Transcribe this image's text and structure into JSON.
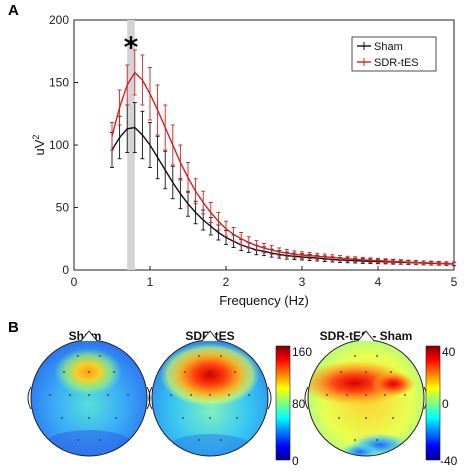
{
  "panel_labels": [
    "A",
    "B"
  ],
  "chart_data": [
    {
      "type": "line",
      "panel": "A",
      "xlabel": "Frequency (Hz)",
      "ylabel_base": "uV",
      "ylabel_sup": "2",
      "xlim": [
        0,
        5
      ],
      "ylim": [
        0,
        200
      ],
      "xticks": [
        0,
        1,
        2,
        3,
        4,
        5
      ],
      "yticks": [
        0,
        50,
        100,
        150,
        200
      ],
      "legend_position": "top-right",
      "highlight_band": [
        0.7,
        0.8
      ],
      "significance_marker": "*",
      "significance_x": 0.75,
      "significance_y": 182,
      "x": [
        0.5,
        0.6,
        0.7,
        0.8,
        0.9,
        1.0,
        1.1,
        1.2,
        1.3,
        1.4,
        1.5,
        1.6,
        1.7,
        1.8,
        1.9,
        2.0,
        2.1,
        2.2,
        2.3,
        2.4,
        2.5,
        2.6,
        2.7,
        2.8,
        2.9,
        3.0,
        3.1,
        3.2,
        3.3,
        3.4,
        3.5,
        3.6,
        3.7,
        3.8,
        3.9,
        4.0,
        4.1,
        4.2,
        4.3,
        4.4,
        4.5,
        4.6,
        4.7,
        4.8,
        4.9,
        5.0
      ],
      "series": [
        {
          "name": "Sham",
          "color": "#111111",
          "values": [
            96,
            106,
            113,
            114,
            108,
            100,
            90,
            80,
            70,
            61,
            53,
            46,
            40,
            35,
            30,
            26,
            23,
            20,
            18,
            16,
            15,
            13.5,
            12.5,
            11.5,
            11,
            10.5,
            10,
            9.5,
            9,
            8.5,
            8,
            7.8,
            7.5,
            7.2,
            7,
            6.8,
            6.6,
            6.4,
            6.2,
            6,
            5.8,
            5.6,
            5.4,
            5.2,
            5,
            4.8
          ],
          "errors": [
            14,
            17,
            19,
            20,
            19,
            18,
            17,
            15,
            13,
            12,
            10,
            9,
            8,
            7,
            6,
            5.5,
            5,
            4.5,
            4,
            3.8,
            3.5,
            3.2,
            3,
            2.8,
            2.6,
            2.5,
            2.4,
            2.3,
            2.2,
            2.1,
            2,
            2,
            1.9,
            1.9,
            1.8,
            1.8,
            1.7,
            1.7,
            1.6,
            1.6,
            1.5,
            1.5,
            1.5,
            1.4,
            1.4,
            1.4
          ]
        },
        {
          "name": "SDR-tES",
          "color": "#d42020",
          "values": [
            107,
            130,
            148,
            158,
            152,
            141,
            128,
            114,
            100,
            86,
            74,
            63,
            54,
            46,
            39,
            33,
            28.5,
            25,
            22,
            19.5,
            17.5,
            16,
            14.5,
            13.5,
            12.5,
            12,
            11.5,
            11,
            10.5,
            10,
            9.5,
            9,
            8.6,
            8.2,
            7.8,
            7.5,
            7.2,
            6.9,
            6.6,
            6.3,
            6,
            5.8,
            5.6,
            5.4,
            5.2,
            5
          ],
          "errors": [
            11,
            14,
            16,
            18,
            20,
            21,
            20,
            18,
            16,
            14,
            12,
            10,
            9,
            8,
            7,
            6,
            5.5,
            5,
            4.5,
            4,
            3.8,
            3.5,
            3.2,
            3,
            2.8,
            2.6,
            2.5,
            2.4,
            2.3,
            2.2,
            2.1,
            2,
            2,
            1.9,
            1.9,
            1.8,
            1.8,
            1.7,
            1.7,
            1.6,
            1.6,
            1.5,
            1.5,
            1.5,
            1.4,
            1.4
          ]
        }
      ]
    },
    {
      "type": "heatmap",
      "panel": "B",
      "subtype": "scalp-topography",
      "maps": [
        {
          "title": "Sham",
          "colorbar_min": 0,
          "colorbar_mid": 80,
          "colorbar_max": 160,
          "colormap": "jet"
        },
        {
          "title": "SDR-tES",
          "colorbar_min": 0,
          "colorbar_mid": 80,
          "colorbar_max": 160,
          "colormap": "jet"
        },
        {
          "title": "SDR-tES - Sham",
          "colorbar_min": -40,
          "colorbar_mid": 0,
          "colorbar_max": 40,
          "colormap": "jet"
        }
      ],
      "colorbars": [
        {
          "ticks": [
            "160",
            "80",
            "0"
          ]
        },
        {
          "ticks": [
            "40",
            "0",
            "-40"
          ]
        }
      ]
    }
  ]
}
